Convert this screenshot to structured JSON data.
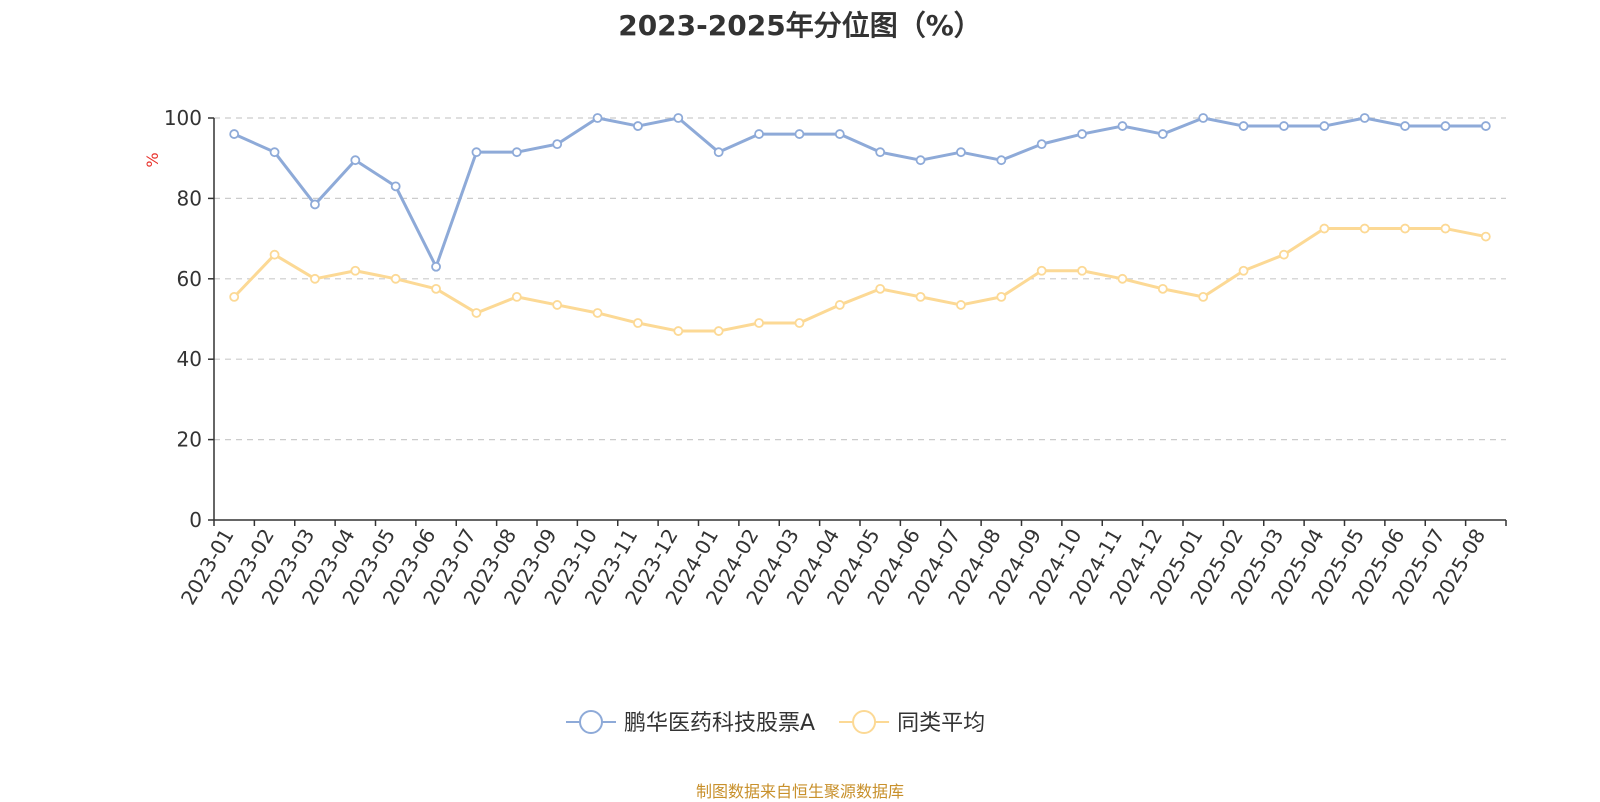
{
  "chart_data": {
    "type": "line",
    "title": "2023-2025年分位图（%）",
    "ylabel": "%",
    "ylim": [
      0,
      100
    ],
    "yticks": [
      0,
      20,
      40,
      60,
      80,
      100
    ],
    "grid": true,
    "legend_placement": "bottom-center",
    "categories": [
      "2023-01",
      "2023-02",
      "2023-03",
      "2023-04",
      "2023-05",
      "2023-06",
      "2023-07",
      "2023-08",
      "2023-09",
      "2023-10",
      "2023-11",
      "2023-12",
      "2024-01",
      "2024-02",
      "2024-03",
      "2024-04",
      "2024-05",
      "2024-06",
      "2024-07",
      "2024-08",
      "2024-09",
      "2024-10",
      "2024-11",
      "2024-12",
      "2025-01",
      "2025-02",
      "2025-03",
      "2025-04",
      "2025-05",
      "2025-06",
      "2025-07",
      "2025-08"
    ],
    "series": [
      {
        "name": "鹏华医药科技股票A",
        "color": "#8eaad8",
        "values": [
          96,
          91.5,
          78.5,
          89.5,
          83,
          63,
          91.5,
          91.5,
          93.5,
          100,
          98,
          100,
          91.5,
          96,
          96,
          96,
          91.5,
          89.5,
          91.5,
          89.5,
          93.5,
          96,
          98,
          96,
          100,
          98,
          98,
          98,
          100,
          98,
          98,
          98
        ]
      },
      {
        "name": "同类平均",
        "color": "#fcd995",
        "values": [
          55.5,
          66,
          60,
          62,
          60,
          57.5,
          51.5,
          55.5,
          53.5,
          51.5,
          49,
          47,
          47,
          49,
          49,
          53.5,
          57.5,
          55.5,
          53.5,
          55.5,
          62,
          62,
          60,
          57.5,
          55.5,
          62,
          66,
          72.5,
          72.5,
          72.5,
          72.5,
          70.5
        ]
      }
    ]
  },
  "ylabel_color": "#e8312b",
  "source_note": {
    "text": "制图数据来自恒生聚源数据库",
    "color": "#c8902b"
  }
}
